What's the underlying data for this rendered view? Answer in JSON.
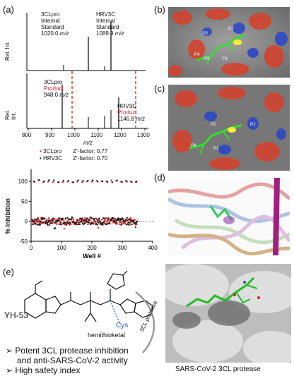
{
  "panels": {
    "a": "(a)",
    "b": "(b)",
    "c": "(c)",
    "d": "(d)",
    "e": "(e)"
  },
  "spectrum_top": {
    "ylabel": "Rel. Int.",
    "peak1_name": "3CLpro",
    "peak1_l2": "Internal",
    "peak1_l3": "Standard",
    "peak1_mz": "1020.0",
    "peak2_name": "HRV3C",
    "peak2_l2": "Internal",
    "peak2_l3": "Standard",
    "peak2_mz": "1089.9",
    "unit": "m/z"
  },
  "spectrum_bottom": {
    "ylabel": "Rel. Int.",
    "peak1_name": "3CLpro",
    "peak1_l2": "Product",
    "peak1_mz": "948.0",
    "peak2_name": "HRV3C",
    "peak2_l2": "Product",
    "peak2_mz": "1146.8",
    "unit": "m/z",
    "xlabel": "m/z",
    "xticks": [
      "800",
      "900",
      "1000",
      "1100",
      "1200",
      "1300"
    ]
  },
  "chart_data": {
    "type": "scatter",
    "xlabel": "Well #",
    "ylabel": "% Inhibition",
    "xlim": [
      0,
      400
    ],
    "ylim": [
      -50,
      130
    ],
    "xticks": [
      "0",
      "100",
      "200",
      "300",
      "400"
    ],
    "yticks": [
      "-50",
      "0",
      "50",
      "100"
    ],
    "legend_position": "top-center",
    "series": [
      {
        "name": "3CLpro",
        "zfactor": "Z'-factor: 0.77",
        "color": "#cc2222",
        "control_level": 100,
        "sample_level": 0
      },
      {
        "name": "HRV3C",
        "zfactor": "Z'-factor: 0.70",
        "color": "#111111",
        "control_level": 100,
        "sample_level": 0
      }
    ],
    "n_wells": 350
  },
  "molecule": {
    "name": "YH-53",
    "cys": "Cys",
    "hemithioketal": "hemithioketal",
    "arc_label": "3CL protease"
  },
  "bullets": [
    "Potent 3CL protease inhibition",
    "and anti-SARS-CoV-2 activity",
    "High safety index"
  ],
  "structure_caption": "SARS-CoV-2 3CL protease",
  "binding_labels": {
    "b": [
      "P2",
      "P1'",
      "P4",
      "P3",
      "P1"
    ],
    "c": [
      "P2",
      "P1'",
      "P4",
      "P1"
    ]
  }
}
